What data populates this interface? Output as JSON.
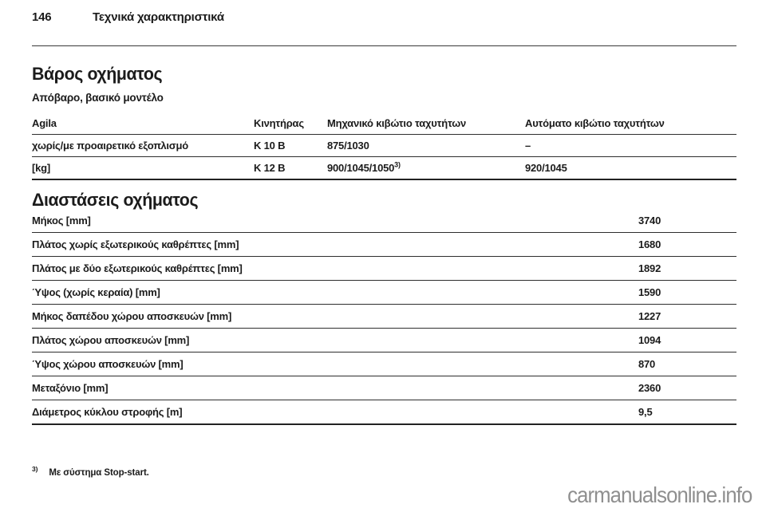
{
  "page": {
    "number": "146",
    "header_title": "Τεχνικά χαρακτηριστικά"
  },
  "weight_section": {
    "title": "Βάρος οχήματος",
    "subtitle": "Απόβαρο, βασικό μοντέλο",
    "table": {
      "headers": [
        "Agila",
        "Κινητήρας",
        "Μηχανικό κιβώτιο ταχυτήτων",
        "Αυτόματο κιβώτιο ταχυτήτων"
      ],
      "rows": [
        {
          "label": "χωρίς/με προαιρετικό εξοπλισμό",
          "engine": "K 10 B",
          "manual": "875/1030",
          "manual_sup": "",
          "automatic": "–"
        },
        {
          "label": "[kg]",
          "engine": "K 12 B",
          "manual": "900/1045/1050",
          "manual_sup": "3)",
          "automatic": "920/1045"
        }
      ]
    }
  },
  "dimensions_section": {
    "title": "Διαστάσεις οχήματος",
    "rows": [
      {
        "label": "Μήκος [mm]",
        "value": "3740"
      },
      {
        "label": "Πλάτος χωρίς εξωτερικούς καθρέπτες [mm]",
        "value": "1680"
      },
      {
        "label": "Πλάτος με δύο εξωτερικούς καθρέπτες [mm]",
        "value": "1892"
      },
      {
        "label": "Ύψος (χωρίς κεραία) [mm]",
        "value": "1590"
      },
      {
        "label": "Μήκος δαπέδου χώρου αποσκευών [mm]",
        "value": "1227"
      },
      {
        "label": "Πλάτος χώρου αποσκευών [mm]",
        "value": "1094"
      },
      {
        "label": "Ύψος χώρου αποσκευών [mm]",
        "value": "870"
      },
      {
        "label": "Μεταξόνιο [mm]",
        "value": "2360"
      },
      {
        "label": "Διάμετρος κύκλου στροφής [m]",
        "value": "9,5"
      }
    ]
  },
  "footnote": {
    "marker": "3)",
    "text": "Με σύστημα Stop-start."
  },
  "watermark": "carmanualsonline.info",
  "colors": {
    "text": "#1b1b1b",
    "rule": "#2e2e2e",
    "watermark": "#8f8f8f",
    "background": "#ffffff"
  }
}
